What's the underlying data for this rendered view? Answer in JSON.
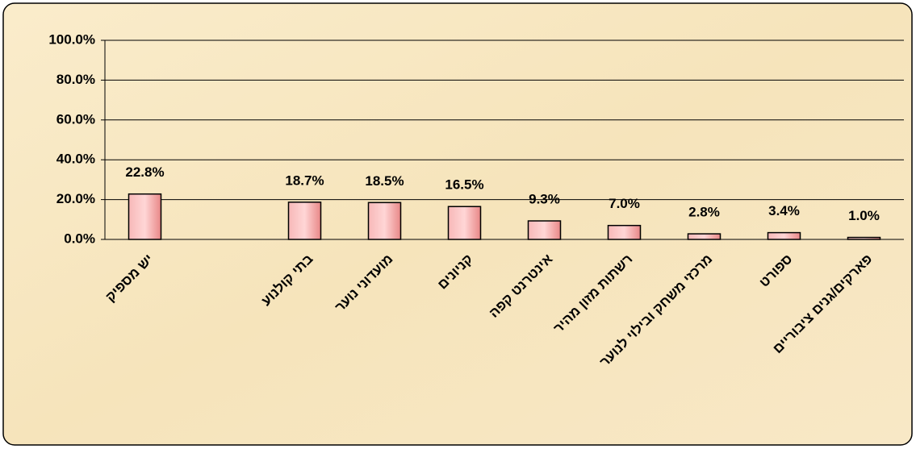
{
  "chart_data": {
    "type": "bar",
    "categories": [
      "יש מספיק",
      null,
      "בתי קולנוע",
      "מועדוני נוער",
      "קניונים",
      "אינטרנט קפה",
      "רשתות מזון מהיר",
      "מרכזי משחק ובילוי לנוער",
      "ספורט",
      "פארקים/גנים ציבוריים"
    ],
    "values": [
      22.8,
      null,
      18.7,
      18.5,
      16.5,
      9.3,
      7.0,
      2.8,
      3.4,
      1.0
    ],
    "value_labels": [
      "22.8%",
      null,
      "18.7%",
      "18.5%",
      "16.5%",
      "9.3%",
      "7.0%",
      "2.8%",
      "3.4%",
      "1.0%"
    ],
    "color": "#f49a9a",
    "ylim": [
      0,
      100
    ],
    "yticks": [
      {
        "value": 0,
        "label": "0.0%"
      },
      {
        "value": 20,
        "label": "20.0%"
      },
      {
        "value": 40,
        "label": "40.0%"
      },
      {
        "value": 60,
        "label": "60.0%"
      },
      {
        "value": 80,
        "label": "80.0%"
      },
      {
        "value": 100,
        "label": "100.0%"
      }
    ],
    "grid": true
  }
}
